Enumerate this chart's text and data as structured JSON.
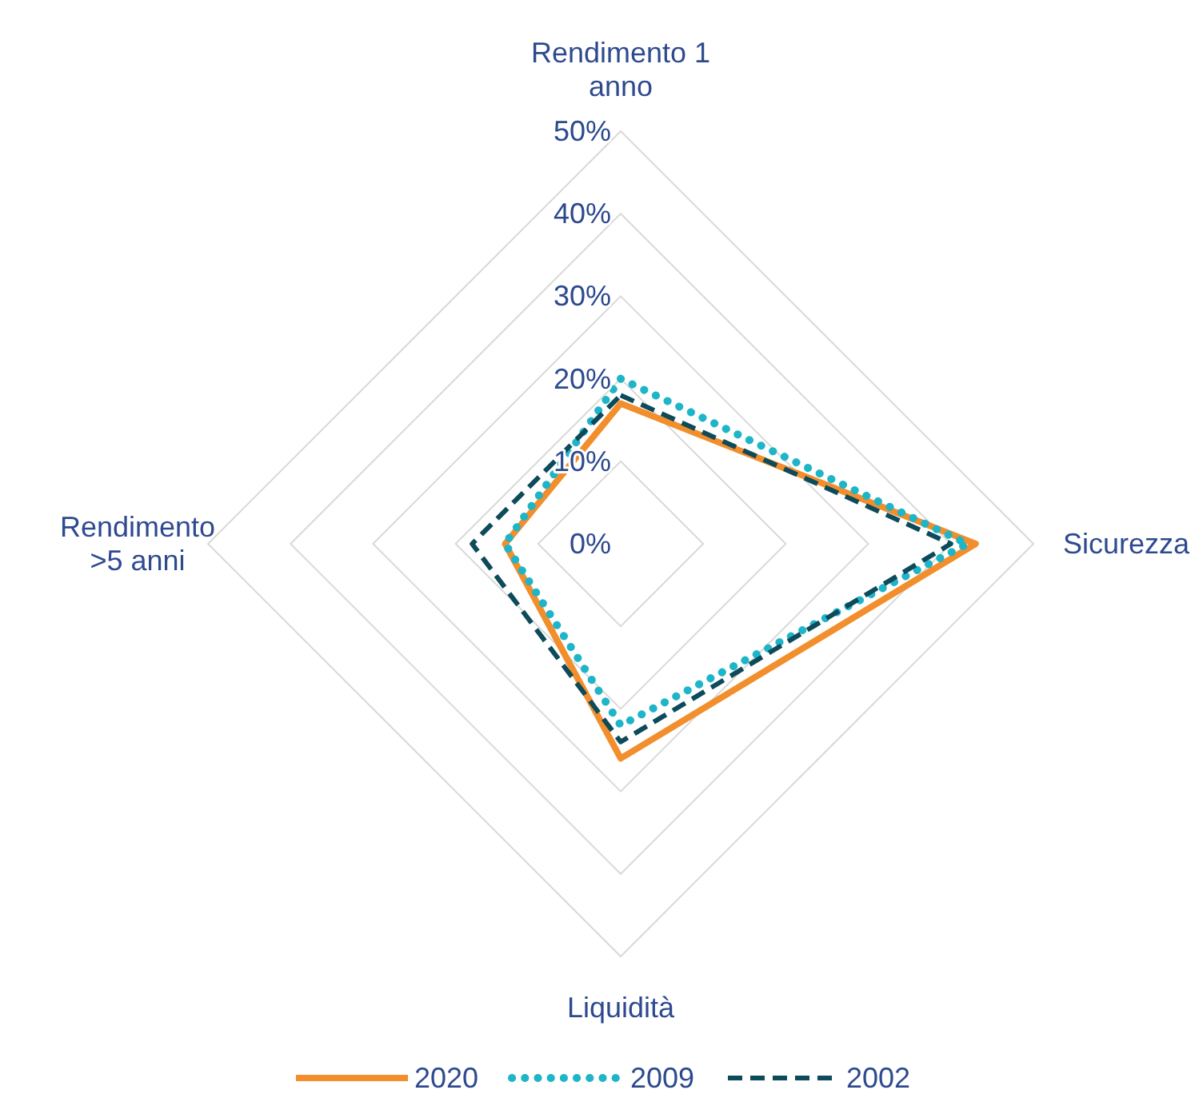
{
  "chart_data": {
    "type": "radar",
    "categories": [
      "Rendimento 1 anno",
      "Sicurezza",
      "Liquidità",
      "Rendimento >5 anni"
    ],
    "ylim": [
      0,
      50
    ],
    "yticks": [
      {
        "value": 0,
        "label": "0%"
      },
      {
        "value": 10,
        "label": "10%"
      },
      {
        "value": 20,
        "label": "20%"
      },
      {
        "value": 30,
        "label": "30%"
      },
      {
        "value": 40,
        "label": "40%"
      },
      {
        "value": 50,
        "label": "50%"
      }
    ],
    "grid": true,
    "legend": "bottom",
    "series": [
      {
        "name": "2020",
        "color": "#f28e2b",
        "line_style": "solid",
        "values": [
          17,
          43,
          26,
          14
        ]
      },
      {
        "name": "2009",
        "color": "#1fb5c9",
        "line_style": "dotted",
        "values": [
          20,
          42,
          22,
          14
        ]
      },
      {
        "name": "2002",
        "color": "#0d4a5a",
        "line_style": "dashed",
        "values": [
          18,
          40,
          24,
          18
        ]
      }
    ]
  }
}
